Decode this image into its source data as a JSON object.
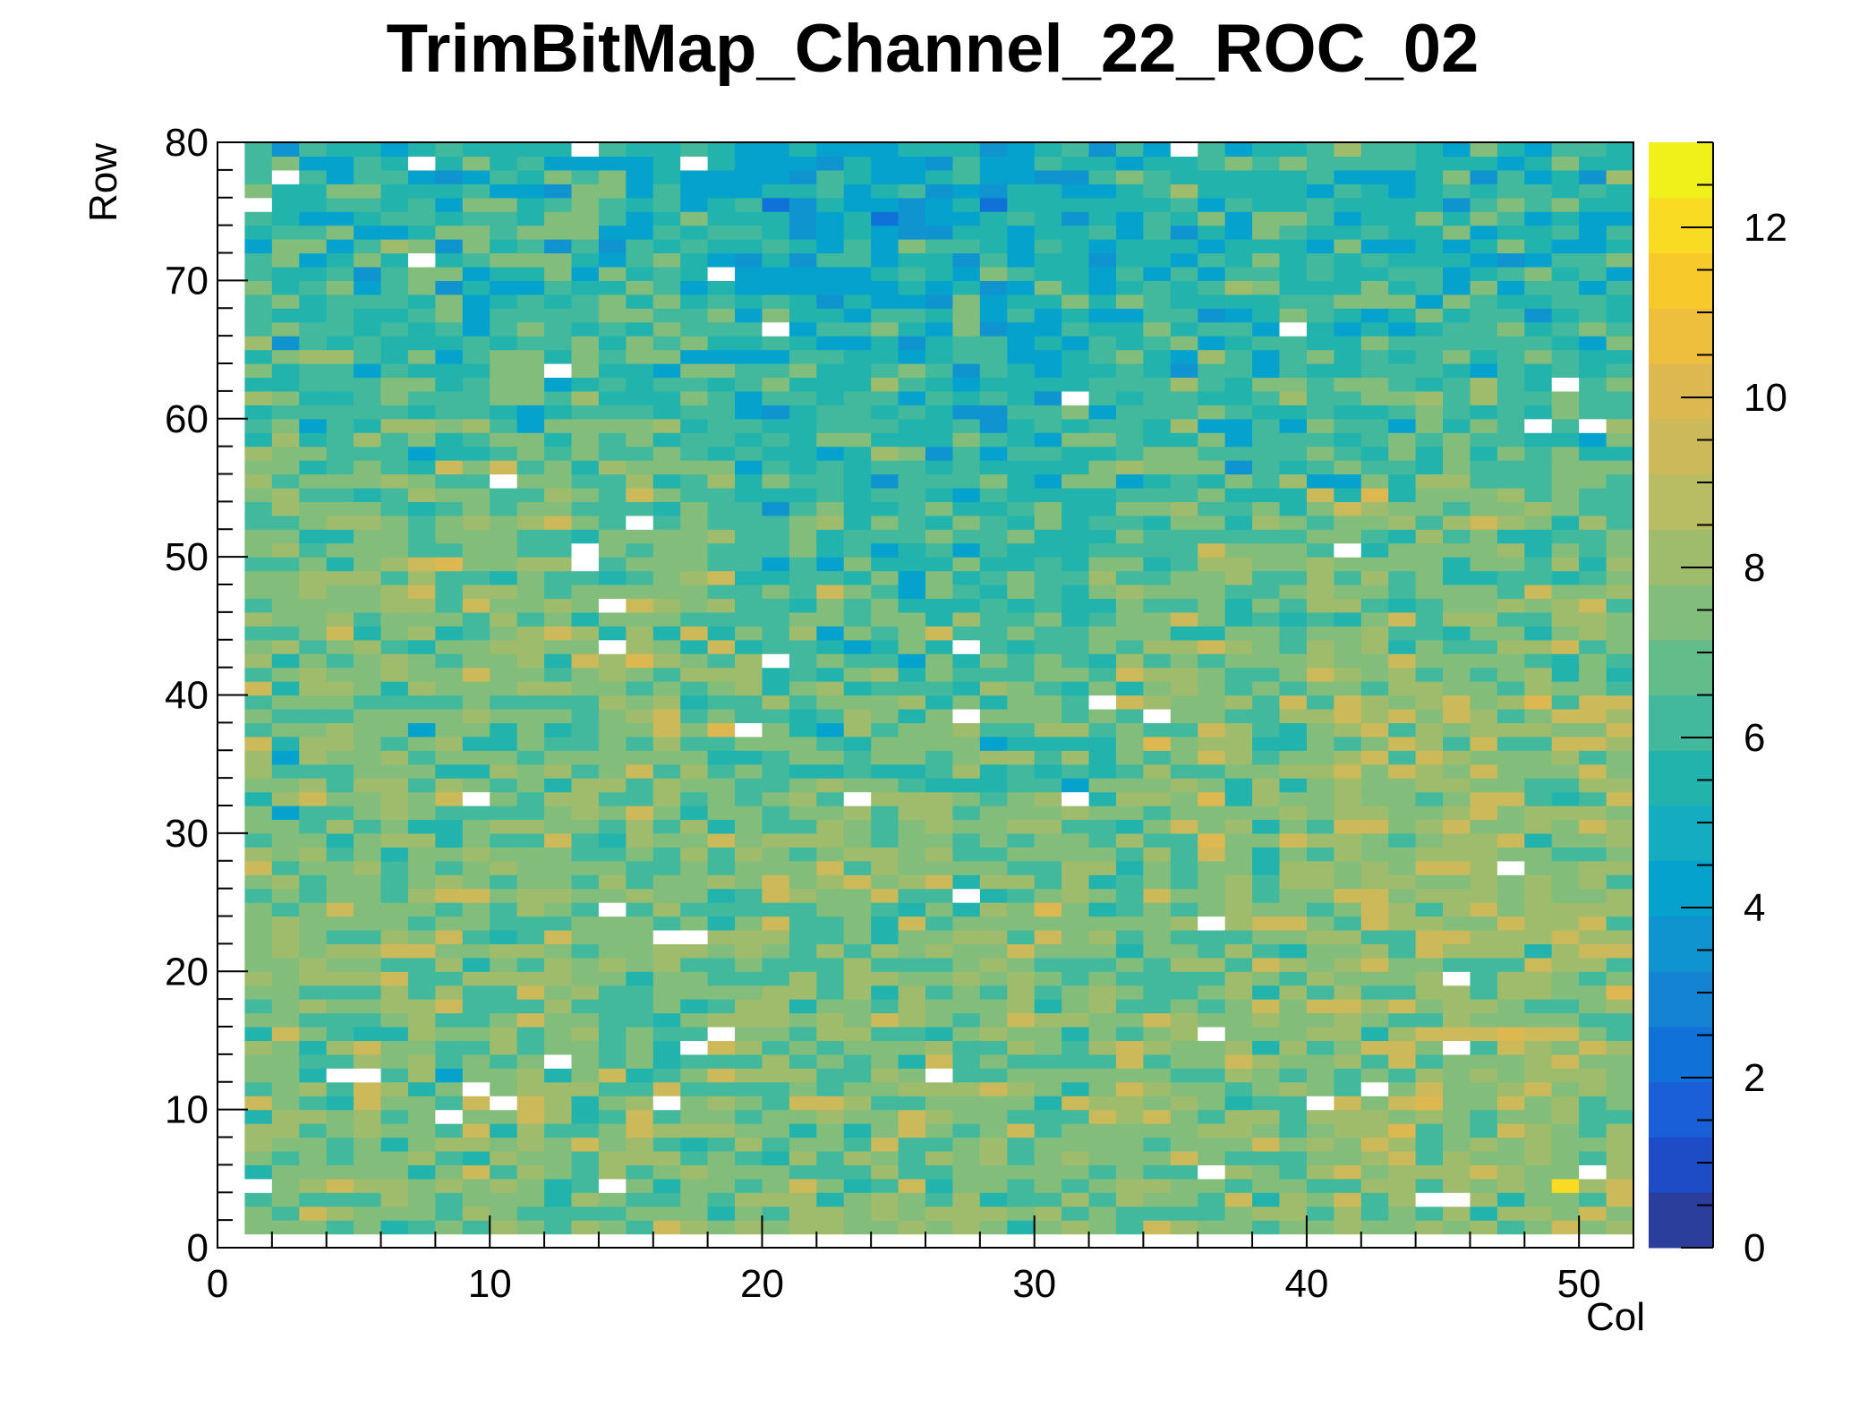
{
  "chart_data": {
    "type": "heatmap",
    "title": "TrimBitMap_Channel_22_ROC_02",
    "xlabel": "Col",
    "ylabel": "Row",
    "xlim": [
      0,
      52
    ],
    "ylim": [
      0,
      80
    ],
    "zlim": [
      0,
      13
    ],
    "x_ticks": [
      0,
      10,
      20,
      30,
      40,
      50
    ],
    "y_ticks": [
      0,
      10,
      20,
      30,
      40,
      50,
      60,
      70,
      80
    ],
    "z_ticks": [
      0,
      2,
      4,
      6,
      8,
      10,
      12
    ],
    "n_cols": 52,
    "n_rows": 80,
    "populated_cols": [
      1,
      51
    ],
    "populated_rows": [
      1,
      79
    ],
    "typical_value": 7,
    "value_spread": [
      0,
      12
    ],
    "upper_region_typical_value": 5,
    "empty_cells": [
      [
        1,
        75
      ],
      [
        2,
        77
      ],
      [
        7,
        78
      ],
      [
        13,
        79
      ],
      [
        17,
        78
      ],
      [
        35,
        79
      ],
      [
        7,
        71
      ],
      [
        18,
        70
      ],
      [
        20,
        66
      ],
      [
        39,
        66
      ],
      [
        12,
        63
      ],
      [
        31,
        61
      ],
      [
        49,
        62
      ],
      [
        48,
        59
      ],
      [
        50,
        59
      ],
      [
        10,
        55
      ],
      [
        41,
        50
      ],
      [
        13,
        50
      ],
      [
        13,
        49
      ],
      [
        15,
        52
      ],
      [
        14,
        46
      ],
      [
        14,
        43
      ],
      [
        20,
        42
      ],
      [
        27,
        43
      ],
      [
        32,
        39
      ],
      [
        27,
        38
      ],
      [
        34,
        38
      ],
      [
        19,
        37
      ],
      [
        9,
        32
      ],
      [
        23,
        32
      ],
      [
        31,
        32
      ],
      [
        14,
        24
      ],
      [
        27,
        25
      ],
      [
        16,
        22
      ],
      [
        17,
        22
      ],
      [
        36,
        23
      ],
      [
        47,
        27
      ],
      [
        45,
        19
      ],
      [
        17,
        14
      ],
      [
        18,
        15
      ],
      [
        36,
        15
      ],
      [
        45,
        14
      ],
      [
        4,
        12
      ],
      [
        5,
        12
      ],
      [
        9,
        11
      ],
      [
        10,
        10
      ],
      [
        12,
        13
      ],
      [
        26,
        12
      ],
      [
        40,
        10
      ],
      [
        42,
        11
      ],
      [
        8,
        9
      ],
      [
        16,
        10
      ],
      [
        14,
        4
      ],
      [
        36,
        5
      ],
      [
        50,
        5
      ],
      [
        1,
        4
      ],
      [
        34,
        0
      ],
      [
        44,
        3
      ],
      [
        45,
        3
      ]
    ],
    "hot_cells": [
      [
        49,
        4,
        12
      ],
      [
        8,
        49,
        10
      ],
      [
        15,
        42,
        10
      ],
      [
        18,
        37,
        10
      ],
      [
        36,
        29,
        10
      ],
      [
        42,
        54,
        10
      ],
      [
        34,
        36,
        10
      ],
      [
        48,
        39,
        10
      ]
    ],
    "colorscale": [
      "#2c3e9c",
      "#1d4cc6",
      "#1b5fd8",
      "#1072d8",
      "#1383d2",
      "#0f94d0",
      "#06a2ce",
      "#13acc0",
      "#23b3ad",
      "#42b99c",
      "#62bd8a",
      "#82bd7b",
      "#9fbc6c",
      "#b8bc63",
      "#cbb95a",
      "#ddb851",
      "#eebe3d",
      "#f8c92b",
      "#f8db22",
      "#f0f01b"
    ],
    "empty_color": "#ffffff"
  }
}
